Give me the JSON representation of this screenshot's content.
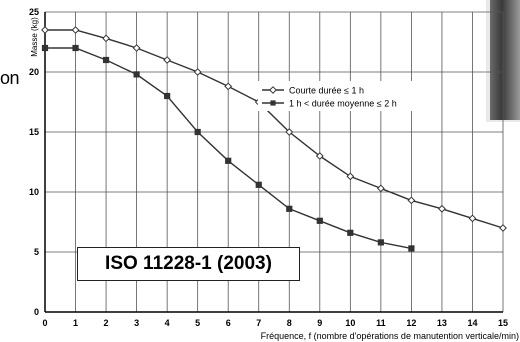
{
  "overlays": {
    "fragment_top": "on",
    "iso_label": "ISO 11228-1 (2003)"
  },
  "chart_data": {
    "type": "line",
    "xlabel": "Fréquence, f (nombre d'opérations de manutention verticale/min)",
    "ylabel": "Masse (kg)",
    "xlim": [
      0,
      15
    ],
    "ylim": [
      0,
      25
    ],
    "xticks": [
      0,
      1,
      2,
      3,
      4,
      5,
      6,
      7,
      8,
      9,
      10,
      11,
      12,
      13,
      14,
      15
    ],
    "yticks": [
      0,
      5,
      10,
      15,
      20,
      25
    ],
    "grid": true,
    "legend_position": "right",
    "series": [
      {
        "name": "Courte durée ≤ 1 h",
        "marker": "diamond",
        "x": [
          0,
          1,
          2,
          3,
          4,
          5,
          6,
          7,
          8,
          9,
          10,
          11,
          12,
          13,
          14,
          15
        ],
        "y": [
          23.5,
          23.5,
          22.8,
          22.0,
          21.0,
          20.0,
          18.8,
          17.5,
          15.0,
          13.0,
          11.3,
          10.3,
          9.3,
          8.6,
          7.8,
          7.0
        ]
      },
      {
        "name": "1 h < durée moyenne ≤ 2 h",
        "marker": "square",
        "x": [
          0,
          1,
          2,
          3,
          4,
          5,
          6,
          7,
          8,
          9,
          10,
          11,
          12
        ],
        "y": [
          22.0,
          22.0,
          21.0,
          19.8,
          18.0,
          15.0,
          12.6,
          10.6,
          8.6,
          7.6,
          6.6,
          5.8,
          5.3
        ]
      }
    ]
  }
}
